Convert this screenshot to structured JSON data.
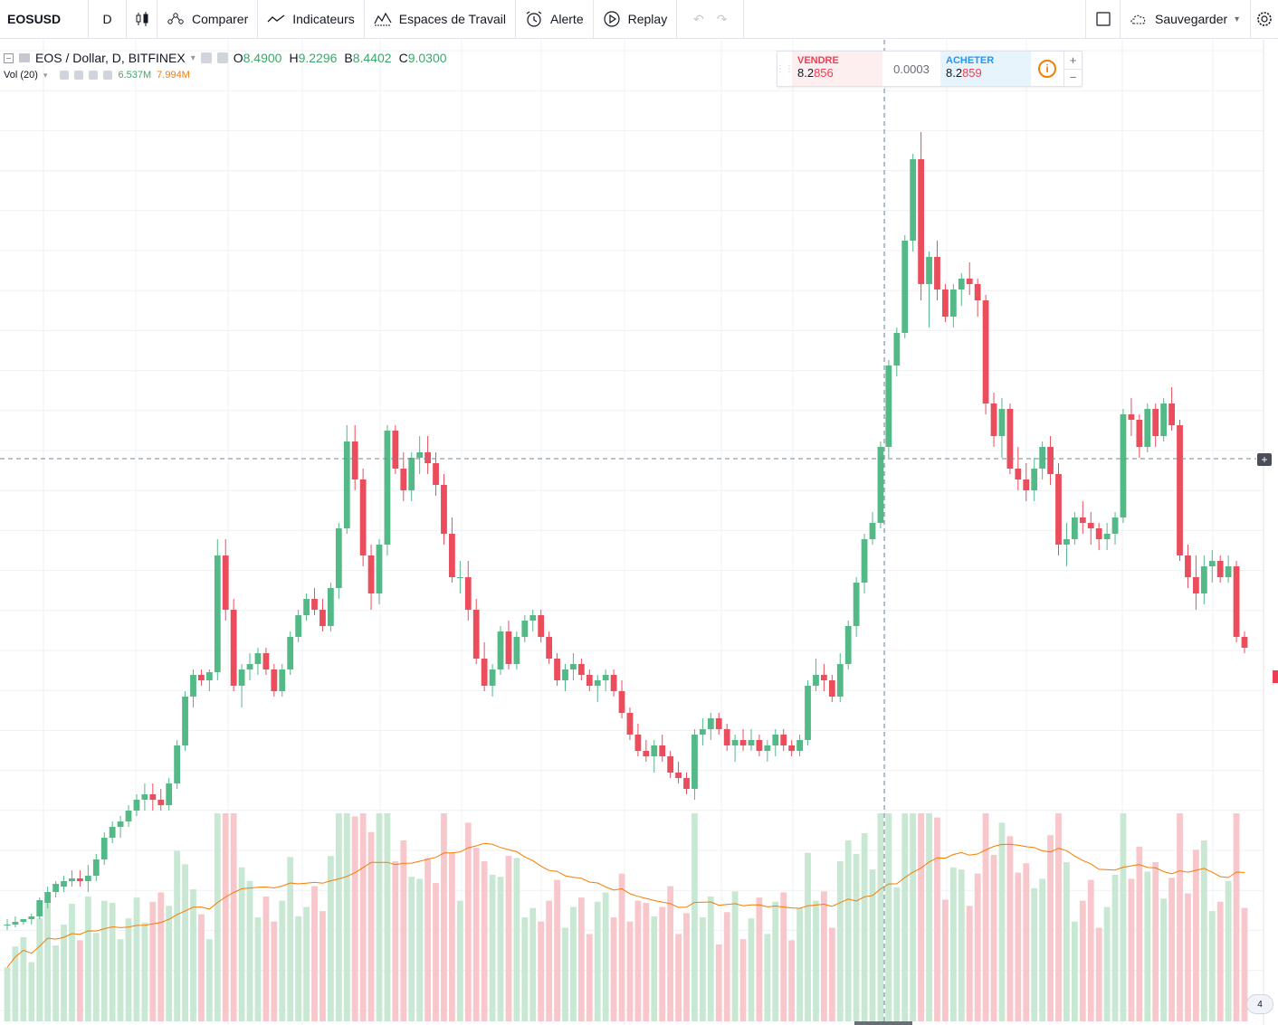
{
  "toolbar": {
    "symbol": "EOSUSD",
    "interval": "D",
    "compare_label": "Comparer",
    "indicators_label": "Indicateurs",
    "workspaces_label": "Espaces de Travail",
    "alert_label": "Alerte",
    "replay_label": "Replay",
    "save_label": "Sauvegarder"
  },
  "legend": {
    "title": "EOS / Dollar, D, BITFINEX",
    "open_key": "O",
    "open": "8.4900",
    "high_key": "H",
    "high": "9.2296",
    "low_key": "B",
    "low": "8.4402",
    "close_key": "C",
    "close": "9.0300",
    "vol_label": "Vol (20)",
    "vol_value": "6.537M",
    "vol_ma": "7.994M"
  },
  "trade_panel": {
    "sell_label": "VENDRE",
    "sell_price_prefix": "8.2",
    "sell_price_highlight": "856",
    "spread": "0.0003",
    "buy_label": "ACHETER",
    "buy_price_prefix": "8.2",
    "buy_price_highlight": "859",
    "info_symbol": "i",
    "plus": "+",
    "minus": "−"
  },
  "badges": {
    "crosshair_plus": "+",
    "corner_count": "4"
  },
  "colors": {
    "up": "#53b987",
    "down": "#eb4d5c",
    "up_volume": "#c8e8d4",
    "down_volume": "#f7c7cc",
    "ma_line": "#f57c00",
    "grid": "#eef0f4"
  },
  "chart_data": {
    "type": "candlestick",
    "symbol": "EOS / Dollar",
    "exchange": "BITFINEX",
    "timeframe": "D",
    "current_price_approx": 8.29,
    "candles": [
      [
        10.2,
        10.3,
        10.1,
        10.2
      ],
      [
        10.2,
        10.35,
        10.15,
        10.25
      ],
      [
        10.25,
        10.3,
        10.2,
        10.3
      ],
      [
        10.3,
        10.4,
        10.2,
        10.35
      ],
      [
        10.35,
        10.7,
        10.3,
        10.65
      ],
      [
        10.6,
        10.9,
        10.5,
        10.8
      ],
      [
        10.8,
        11.0,
        10.7,
        10.95
      ],
      [
        10.9,
        11.1,
        10.8,
        11.0
      ],
      [
        11.0,
        11.2,
        10.9,
        11.05
      ],
      [
        11.05,
        11.2,
        10.9,
        11.0
      ],
      [
        11.0,
        11.3,
        10.8,
        11.1
      ],
      [
        11.1,
        11.5,
        11.0,
        11.4
      ],
      [
        11.4,
        11.9,
        11.3,
        11.8
      ],
      [
        11.8,
        12.1,
        11.7,
        12.0
      ],
      [
        12.0,
        12.2,
        11.8,
        12.1
      ],
      [
        12.1,
        12.4,
        12.0,
        12.3
      ],
      [
        12.3,
        12.6,
        12.2,
        12.5
      ],
      [
        12.5,
        12.8,
        12.3,
        12.6
      ],
      [
        12.6,
        12.8,
        12.3,
        12.5
      ],
      [
        12.5,
        12.7,
        12.3,
        12.4
      ],
      [
        12.4,
        12.9,
        12.3,
        12.8
      ],
      [
        12.8,
        13.6,
        12.7,
        13.5
      ],
      [
        13.5,
        14.5,
        13.4,
        14.4
      ],
      [
        14.4,
        14.9,
        14.2,
        14.8
      ],
      [
        14.8,
        14.9,
        14.6,
        14.7
      ],
      [
        14.7,
        14.9,
        14.5,
        14.85
      ],
      [
        14.85,
        17.3,
        14.7,
        17.0
      ],
      [
        17.0,
        17.3,
        15.8,
        16.0
      ],
      [
        16.0,
        16.2,
        14.5,
        14.6
      ],
      [
        14.6,
        15.0,
        14.2,
        14.9
      ],
      [
        14.9,
        15.2,
        14.7,
        15.0
      ],
      [
        15.0,
        15.3,
        14.8,
        15.2
      ],
      [
        15.2,
        15.3,
        14.8,
        14.9
      ],
      [
        14.9,
        15.0,
        14.4,
        14.5
      ],
      [
        14.5,
        15.0,
        14.4,
        14.9
      ],
      [
        14.9,
        15.6,
        14.8,
        15.5
      ],
      [
        15.5,
        16.0,
        15.4,
        15.9
      ],
      [
        15.9,
        16.3,
        15.8,
        16.2
      ],
      [
        16.2,
        16.4,
        15.9,
        16.0
      ],
      [
        16.0,
        16.2,
        15.6,
        15.7
      ],
      [
        15.7,
        16.5,
        15.6,
        16.4
      ],
      [
        16.4,
        17.6,
        16.2,
        17.5
      ],
      [
        17.5,
        19.4,
        17.4,
        19.1
      ],
      [
        19.1,
        19.4,
        18.2,
        18.4
      ],
      [
        18.4,
        18.6,
        16.8,
        17.0
      ],
      [
        17.0,
        17.2,
        16.0,
        16.3
      ],
      [
        16.3,
        17.3,
        16.1,
        17.2
      ],
      [
        17.2,
        19.4,
        17.0,
        19.3
      ],
      [
        19.3,
        19.4,
        18.5,
        18.6
      ],
      [
        18.6,
        18.9,
        18.0,
        18.2
      ],
      [
        18.2,
        18.9,
        18.0,
        18.8
      ],
      [
        18.8,
        19.2,
        18.5,
        18.9
      ],
      [
        18.9,
        19.2,
        18.5,
        18.7
      ],
      [
        18.7,
        18.9,
        18.1,
        18.3
      ],
      [
        18.3,
        18.5,
        17.2,
        17.4
      ],
      [
        17.4,
        17.7,
        16.5,
        16.6
      ],
      [
        16.6,
        16.9,
        16.3,
        16.6
      ],
      [
        16.6,
        16.9,
        15.8,
        16.0
      ],
      [
        16.0,
        16.2,
        15.0,
        15.1
      ],
      [
        15.1,
        15.4,
        14.5,
        14.6
      ],
      [
        14.6,
        15.0,
        14.4,
        14.9
      ],
      [
        14.9,
        15.7,
        14.8,
        15.6
      ],
      [
        15.6,
        15.8,
        14.9,
        15.0
      ],
      [
        15.0,
        15.6,
        14.9,
        15.5
      ],
      [
        15.5,
        15.9,
        15.4,
        15.8
      ],
      [
        15.8,
        16.0,
        15.6,
        15.9
      ],
      [
        15.9,
        16.0,
        15.4,
        15.5
      ],
      [
        15.5,
        15.6,
        15.0,
        15.1
      ],
      [
        15.1,
        15.2,
        14.6,
        14.7
      ],
      [
        14.7,
        15.0,
        14.5,
        14.9
      ],
      [
        14.9,
        15.2,
        14.7,
        15.0
      ],
      [
        15.0,
        15.1,
        14.7,
        14.8
      ],
      [
        14.8,
        14.9,
        14.5,
        14.6
      ],
      [
        14.6,
        14.8,
        14.3,
        14.7
      ],
      [
        14.7,
        14.9,
        14.5,
        14.8
      ],
      [
        14.8,
        14.9,
        14.4,
        14.5
      ],
      [
        14.5,
        14.7,
        14.0,
        14.1
      ],
      [
        14.1,
        14.2,
        13.6,
        13.7
      ],
      [
        13.7,
        13.9,
        13.3,
        13.4
      ],
      [
        13.4,
        13.6,
        13.2,
        13.3
      ],
      [
        13.3,
        13.6,
        13.0,
        13.5
      ],
      [
        13.5,
        13.7,
        13.2,
        13.3
      ],
      [
        13.3,
        13.4,
        12.9,
        13.0
      ],
      [
        13.0,
        13.2,
        12.8,
        12.9
      ],
      [
        12.9,
        13.0,
        12.6,
        12.7
      ],
      [
        12.7,
        13.8,
        12.5,
        13.7
      ],
      [
        13.7,
        14.0,
        13.5,
        13.8
      ],
      [
        13.8,
        14.1,
        13.6,
        14.0
      ],
      [
        14.0,
        14.1,
        13.7,
        13.8
      ],
      [
        13.8,
        13.9,
        13.4,
        13.5
      ],
      [
        13.5,
        13.7,
        13.2,
        13.6
      ],
      [
        13.6,
        13.8,
        13.4,
        13.5
      ],
      [
        13.5,
        13.8,
        13.4,
        13.6
      ],
      [
        13.6,
        13.7,
        13.3,
        13.4
      ],
      [
        13.4,
        13.6,
        13.2,
        13.5
      ],
      [
        13.5,
        13.8,
        13.3,
        13.7
      ],
      [
        13.7,
        13.8,
        13.4,
        13.5
      ],
      [
        13.5,
        13.6,
        13.3,
        13.4
      ],
      [
        13.4,
        13.7,
        13.3,
        13.6
      ],
      [
        13.6,
        14.7,
        13.5,
        14.6
      ],
      [
        14.6,
        15.1,
        14.5,
        14.8
      ],
      [
        14.8,
        15.0,
        14.5,
        14.7
      ],
      [
        14.7,
        14.8,
        14.3,
        14.4
      ],
      [
        14.4,
        15.2,
        14.3,
        15.0
      ],
      [
        15.0,
        15.8,
        14.9,
        15.7
      ],
      [
        15.7,
        16.6,
        15.5,
        16.5
      ],
      [
        16.5,
        17.4,
        16.3,
        17.3
      ],
      [
        17.3,
        17.8,
        17.2,
        17.6
      ],
      [
        17.6,
        19.1,
        17.5,
        19.0
      ],
      [
        19.0,
        20.6,
        18.8,
        20.5
      ],
      [
        20.5,
        21.2,
        20.3,
        21.1
      ],
      [
        21.1,
        22.9,
        21.0,
        22.8
      ],
      [
        22.8,
        24.4,
        22.6,
        24.3
      ],
      [
        24.3,
        24.8,
        21.7,
        22.0
      ],
      [
        22.0,
        22.6,
        21.2,
        22.5
      ],
      [
        22.5,
        22.8,
        21.7,
        21.9
      ],
      [
        21.9,
        22.0,
        21.3,
        21.4
      ],
      [
        21.4,
        22.0,
        21.2,
        21.9
      ],
      [
        21.9,
        22.2,
        21.6,
        22.1
      ],
      [
        22.1,
        22.4,
        21.8,
        22.0
      ],
      [
        22.0,
        22.1,
        21.4,
        21.7
      ],
      [
        21.7,
        21.8,
        19.6,
        19.8
      ],
      [
        19.8,
        20.0,
        19.0,
        19.2
      ],
      [
        19.2,
        19.9,
        18.8,
        19.7
      ],
      [
        19.7,
        19.8,
        18.5,
        18.6
      ],
      [
        18.6,
        19.0,
        18.2,
        18.4
      ],
      [
        18.4,
        18.7,
        18.0,
        18.2
      ],
      [
        18.2,
        18.8,
        18.0,
        18.6
      ],
      [
        18.6,
        19.1,
        18.4,
        19.0
      ],
      [
        19.0,
        19.2,
        18.3,
        18.5
      ],
      [
        18.5,
        18.7,
        17.0,
        17.2
      ],
      [
        17.2,
        17.6,
        16.8,
        17.3
      ],
      [
        17.3,
        17.8,
        17.2,
        17.7
      ],
      [
        17.7,
        18.0,
        17.4,
        17.6
      ],
      [
        17.6,
        17.8,
        17.2,
        17.5
      ],
      [
        17.5,
        17.6,
        17.1,
        17.3
      ],
      [
        17.3,
        17.6,
        17.1,
        17.4
      ],
      [
        17.4,
        17.8,
        17.2,
        17.7
      ],
      [
        17.7,
        19.7,
        17.6,
        19.6
      ],
      [
        19.6,
        19.9,
        19.2,
        19.5
      ],
      [
        19.5,
        19.6,
        18.8,
        19.0
      ],
      [
        19.0,
        19.8,
        18.9,
        19.7
      ],
      [
        19.7,
        19.8,
        19.0,
        19.2
      ],
      [
        19.2,
        19.9,
        19.1,
        19.8
      ],
      [
        19.8,
        20.1,
        19.3,
        19.4
      ],
      [
        19.4,
        19.5,
        16.9,
        17.0
      ],
      [
        17.0,
        17.2,
        16.4,
        16.6
      ],
      [
        16.6,
        17.0,
        16.0,
        16.3
      ],
      [
        16.3,
        17.0,
        16.1,
        16.8
      ],
      [
        16.8,
        17.1,
        16.5,
        16.9
      ],
      [
        16.9,
        17.0,
        16.5,
        16.6
      ],
      [
        16.6,
        17.0,
        16.5,
        16.8
      ],
      [
        16.8,
        16.9,
        15.4,
        15.5
      ],
      [
        15.5,
        15.6,
        15.2,
        15.3
      ]
    ],
    "volume_ma_period": 20
  }
}
